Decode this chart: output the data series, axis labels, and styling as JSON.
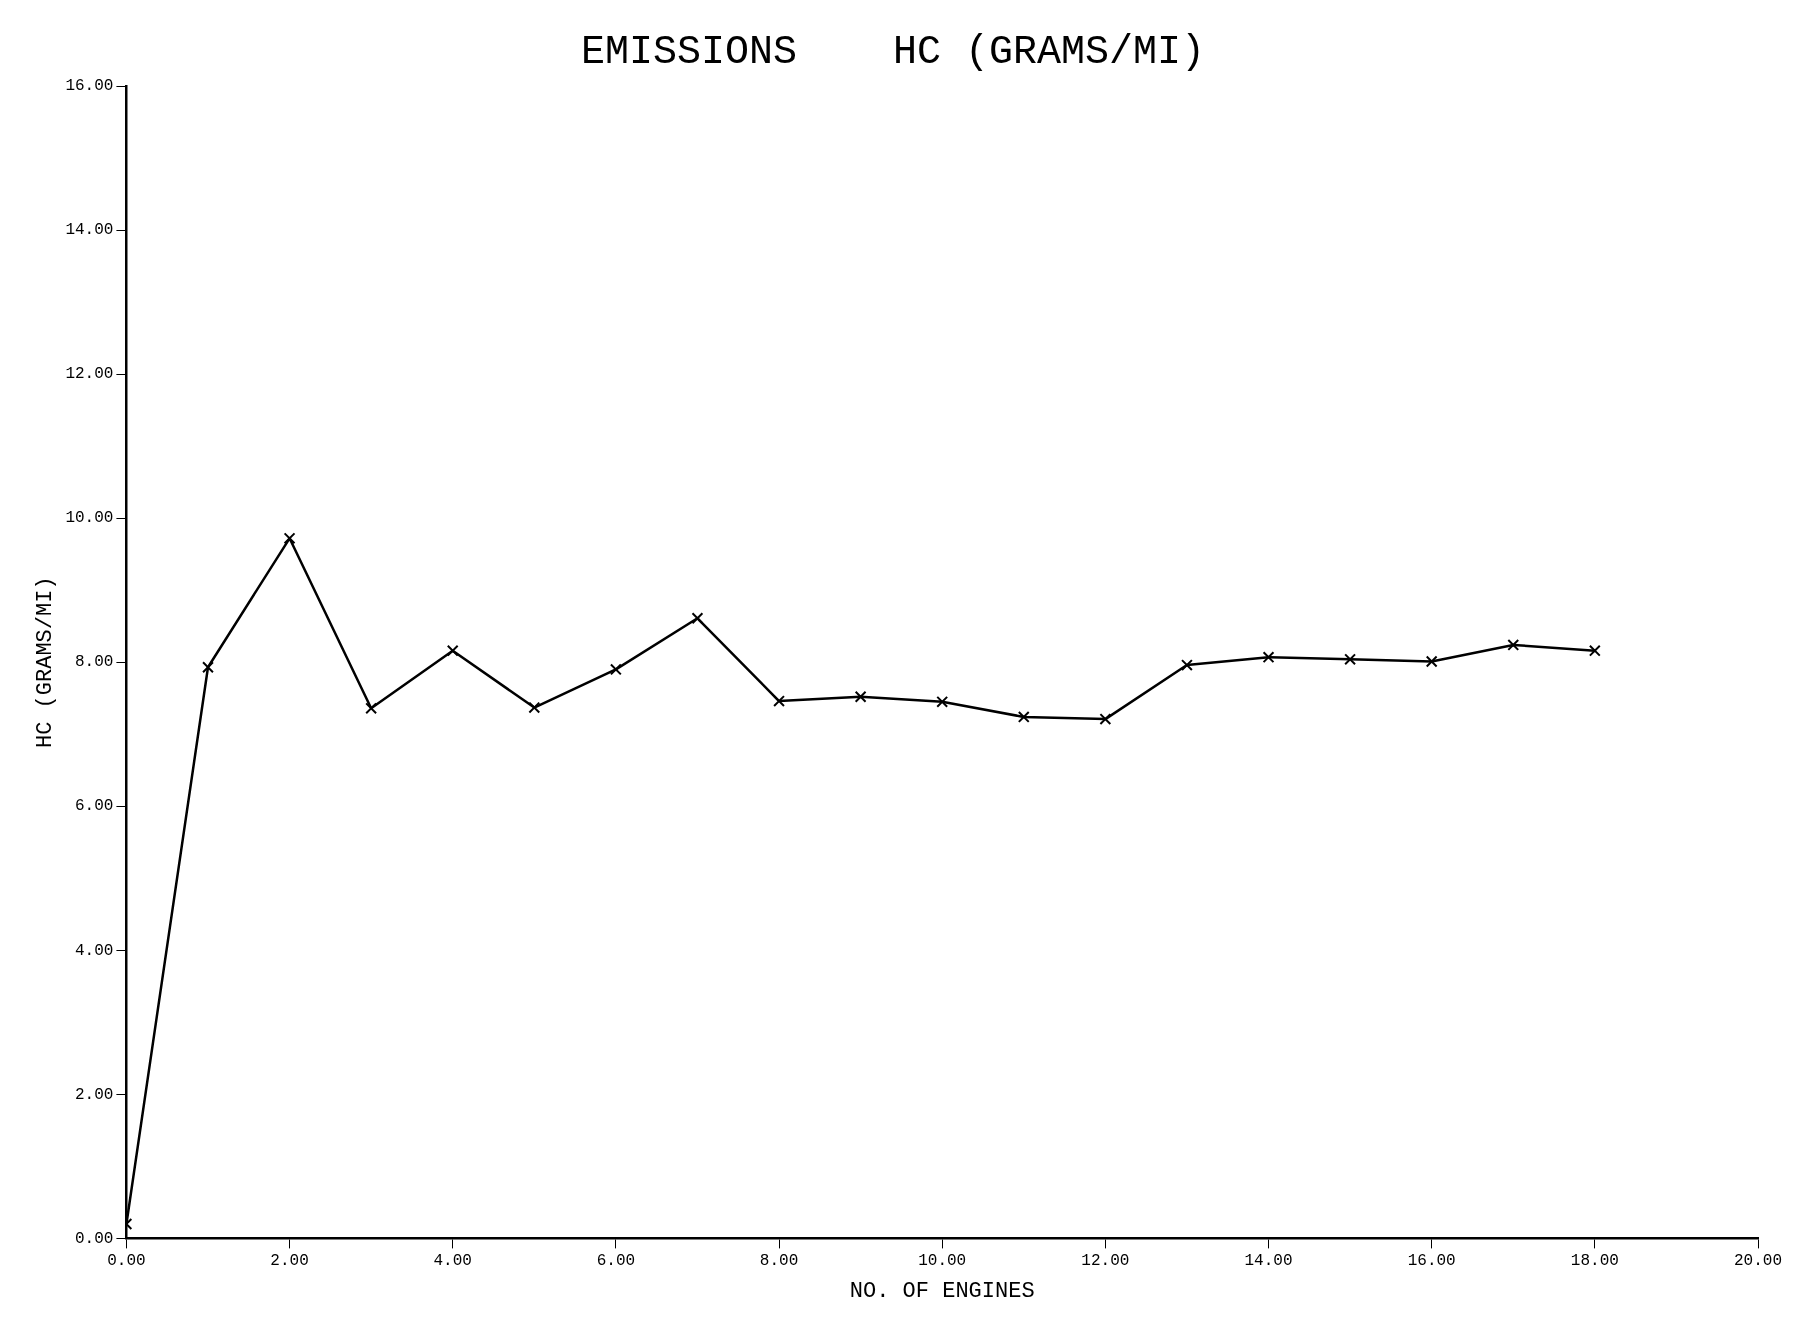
{
  "chart_data": {
    "type": "line",
    "title": "EMISSIONS    HC (GRAMS/MI)",
    "xlabel": "NO. OF ENGINES",
    "ylabel": "HC (GRAMS/MI)",
    "x": [
      0,
      1,
      2,
      3,
      4,
      5,
      6,
      7,
      8,
      9,
      10,
      11,
      12,
      13,
      14,
      15,
      16,
      17,
      18
    ],
    "series": [
      {
        "color": "#000000",
        "values": [
          0.2,
          7.93,
          9.72,
          7.36,
          8.16,
          7.37,
          7.9,
          8.61,
          7.46,
          7.52,
          7.45,
          7.24,
          7.21,
          7.96,
          8.07,
          8.04,
          8.01,
          8.24,
          8.16
        ]
      }
    ],
    "xlim": [
      0,
      20
    ],
    "xticks": [
      {
        "value": 0,
        "label": "0.00"
      },
      {
        "value": 2,
        "label": "2.00"
      },
      {
        "value": 4,
        "label": "4.00"
      },
      {
        "value": 6,
        "label": "6.00"
      },
      {
        "value": 8,
        "label": "8.00"
      },
      {
        "value": 10,
        "label": "10.00"
      },
      {
        "value": 12,
        "label": "12.00"
      },
      {
        "value": 14,
        "label": "14.00"
      },
      {
        "value": 16,
        "label": "16.00"
      },
      {
        "value": 18,
        "label": "18.00"
      },
      {
        "value": 20,
        "label": "20.00"
      }
    ],
    "ylim": [
      0,
      16
    ],
    "yticks": [
      {
        "value": 0,
        "label": "0.00"
      },
      {
        "value": 2,
        "label": "2.00"
      },
      {
        "value": 4,
        "label": "4.00"
      },
      {
        "value": 6,
        "label": "6.00"
      },
      {
        "value": 8,
        "label": "8.00"
      },
      {
        "value": 10,
        "label": "10.00"
      },
      {
        "value": 12,
        "label": "12.00"
      },
      {
        "value": 14,
        "label": "14.00"
      },
      {
        "value": 16,
        "label": "16.00"
      }
    ],
    "grid": false,
    "legend": false,
    "marker": "cross",
    "line_style": "solid"
  }
}
